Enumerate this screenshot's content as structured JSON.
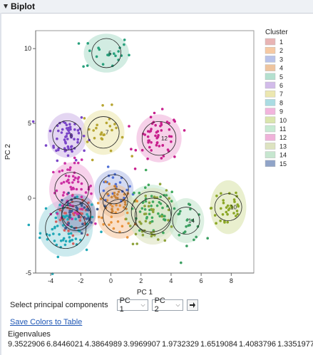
{
  "header": {
    "title": "Biplot"
  },
  "legend": {
    "title": "Cluster",
    "items": [
      {
        "label": "1",
        "color": "#e8b4b4"
      },
      {
        "label": "2",
        "color": "#f6c9a3"
      },
      {
        "label": "3",
        "color": "#b8c2ea"
      },
      {
        "label": "4",
        "color": "#eec49e"
      },
      {
        "label": "5",
        "color": "#b4e0cf"
      },
      {
        "label": "6",
        "color": "#d2bbea"
      },
      {
        "label": "7",
        "color": "#ece7b0"
      },
      {
        "label": "8",
        "color": "#aadce3"
      },
      {
        "label": "9",
        "color": "#f2b4dd"
      },
      {
        "label": "10",
        "color": "#dae5ad"
      },
      {
        "label": "11",
        "color": "#c7ead3"
      },
      {
        "label": "12",
        "color": "#f0b2da"
      },
      {
        "label": "13",
        "color": "#dde3c0"
      },
      {
        "label": "14",
        "color": "#c6e6cf"
      },
      {
        "label": "15",
        "color": "#90a4c8"
      }
    ]
  },
  "controls": {
    "label": "Select principal components",
    "pc_x": "PC 1",
    "pc_y": "PC 2"
  },
  "link": "Save Colors to Table",
  "eigen": {
    "label": "Eigenvalues",
    "values": [
      "9.3522906",
      "6.8446021",
      "4.3864989",
      "3.9969907",
      "1.9732329",
      "1.6519084",
      "1.4083796",
      "1.3351977"
    ]
  },
  "chart_data": {
    "type": "scatter",
    "xlabel": "PC 1",
    "ylabel": "PC 2",
    "xlim": [
      -5,
      9.5
    ],
    "ylim": [
      -5,
      11.2
    ],
    "xticks": [
      -4,
      -2,
      0,
      2,
      4,
      6,
      8
    ],
    "yticks": [
      -5,
      0,
      5,
      10
    ],
    "grid": false,
    "legend_position": "right",
    "series": [
      {
        "name": "1",
        "cx": -2.3,
        "cy": -1.2,
        "ex": 1.3,
        "ey": 1.3,
        "n": 35,
        "sx": 0.65,
        "sy": 0.7,
        "color": "#d25f5f",
        "fill": "#e8b4b4",
        "label": ""
      },
      {
        "name": "2",
        "cx": 0.6,
        "cy": -1.2,
        "ex": 1.5,
        "ey": 1.5,
        "n": 25,
        "sx": 0.7,
        "sy": 0.7,
        "color": "#e8923a",
        "fill": "#f6c9a3",
        "label": ""
      },
      {
        "name": "3",
        "cx": 0.2,
        "cy": 0.6,
        "ex": 1.3,
        "ey": 1.3,
        "n": 20,
        "sx": 0.6,
        "sy": 0.6,
        "color": "#4e6fd6",
        "fill": "#b8c2ea",
        "label": ""
      },
      {
        "name": "4",
        "cx": 0.3,
        "cy": -0.2,
        "ex": 1.1,
        "ey": 1.1,
        "n": 25,
        "sx": 0.55,
        "sy": 0.6,
        "color": "#c98238",
        "fill": "#eec49e",
        "label": ""
      },
      {
        "name": "5",
        "cx": -0.3,
        "cy": 9.7,
        "ex": 1.5,
        "ey": 1.3,
        "n": 22,
        "sx": 0.8,
        "sy": 0.6,
        "color": "#27a07c",
        "fill": "#b4e0cf",
        "label": "5"
      },
      {
        "name": "6",
        "cx": -2.9,
        "cy": 4.2,
        "ex": 1.3,
        "ey": 1.5,
        "n": 60,
        "sx": 0.65,
        "sy": 0.8,
        "color": "#7a45c8",
        "fill": "#d2bbea",
        "label": "6"
      },
      {
        "name": "7",
        "cx": -0.5,
        "cy": 4.4,
        "ex": 1.4,
        "ey": 1.5,
        "n": 25,
        "sx": 0.7,
        "sy": 0.8,
        "color": "#b7a531",
        "fill": "#ece7b0",
        "label": "7"
      },
      {
        "name": "8",
        "cx": -3.0,
        "cy": -2.0,
        "ex": 1.8,
        "ey": 1.9,
        "n": 60,
        "sx": 0.85,
        "sy": 0.9,
        "color": "#20a8b7",
        "fill": "#aadce3",
        "label": ""
      },
      {
        "name": "9",
        "cx": -2.6,
        "cy": 0.6,
        "ex": 1.5,
        "ey": 1.8,
        "n": 60,
        "sx": 0.7,
        "sy": 0.9,
        "color": "#cc2fa3",
        "fill": "#f2b4dd",
        "label": ""
      },
      {
        "name": "10",
        "cx": 7.8,
        "cy": -0.6,
        "ex": 1.2,
        "ey": 1.8,
        "n": 35,
        "sx": 0.55,
        "sy": 0.9,
        "color": "#8aa624",
        "fill": "#dae5ad",
        "label": "10"
      },
      {
        "name": "11",
        "cx": 2.7,
        "cy": -0.9,
        "ex": 1.8,
        "ey": 1.8,
        "n": 45,
        "sx": 0.85,
        "sy": 0.85,
        "color": "#41a95e",
        "fill": "#c7ead3",
        "label": ""
      },
      {
        "name": "12",
        "cx": 3.2,
        "cy": 4.0,
        "ex": 1.5,
        "ey": 1.6,
        "n": 55,
        "sx": 0.7,
        "sy": 0.8,
        "color": "#c8208d",
        "fill": "#f0b2da",
        "label": "12"
      },
      {
        "name": "13",
        "cx": 2.8,
        "cy": -1.2,
        "ex": 1.6,
        "ey": 1.9,
        "n": 40,
        "sx": 0.8,
        "sy": 0.9,
        "color": "#8da23a",
        "fill": "#dde3c0",
        "label": ""
      },
      {
        "name": "14",
        "cx": 5.0,
        "cy": -1.5,
        "ex": 1.2,
        "ey": 1.5,
        "n": 25,
        "sx": 0.6,
        "sy": 0.7,
        "color": "#3c9f62",
        "fill": "#c6e6cf",
        "label": "14"
      },
      {
        "name": "15",
        "cx": -2.3,
        "cy": -1.0,
        "ex": 1.3,
        "ey": 1.3,
        "n": 35,
        "sx": 0.6,
        "sy": 0.6,
        "color": "#3f5b91",
        "fill": "#90a4c8",
        "label": ""
      }
    ]
  }
}
